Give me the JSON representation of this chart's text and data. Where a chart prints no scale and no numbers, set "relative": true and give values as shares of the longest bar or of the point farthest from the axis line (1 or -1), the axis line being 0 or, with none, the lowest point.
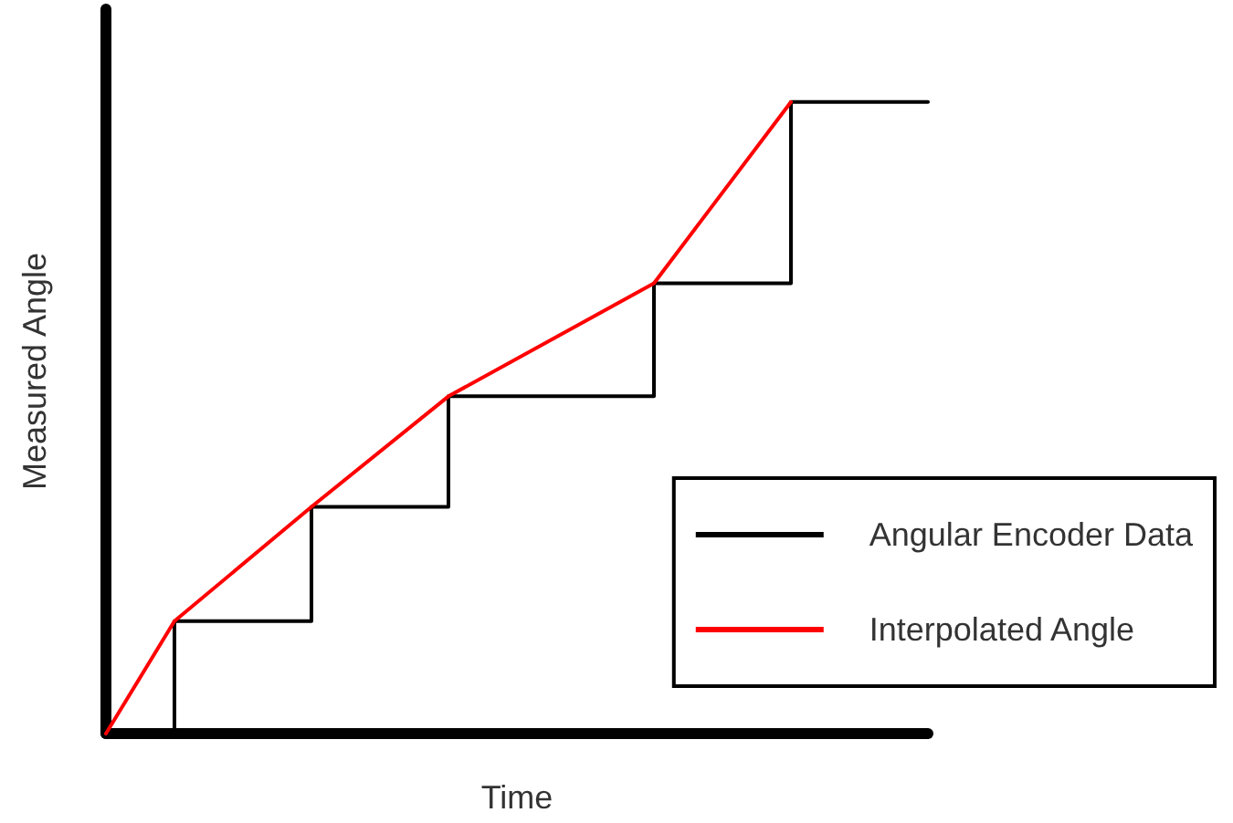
{
  "chart_data": {
    "type": "line",
    "relative": true,
    "xlabel": "Time",
    "ylabel": "Measured Angle",
    "categories": [
      null,
      null,
      null,
      null,
      null,
      null,
      null,
      null,
      null,
      null,
      null,
      null,
      null
    ],
    "grid": false,
    "legend": "bottom right",
    "marker": "none",
    "line_style": "solid",
    "series": [
      {
        "name": "Angular Encoder Data",
        "type": "step",
        "color": "#000000",
        "values": [
          null,
          0,
          null,
          0.178,
          null,
          0.359,
          null,
          null,
          0.534,
          null,
          0.713,
          null,
          1
        ]
      },
      {
        "name": "Interpolated Angle",
        "type": "line",
        "color": "#ff0000",
        "values": [
          0,
          0.178,
          null,
          0.359,
          null,
          0.534,
          null,
          null,
          0.713,
          null,
          1,
          null,
          null
        ]
      }
    ]
  }
}
